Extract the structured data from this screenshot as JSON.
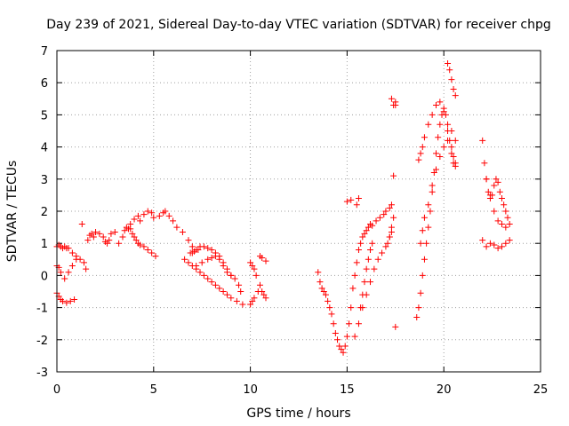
{
  "chart_data": {
    "type": "scatter",
    "title": "Day 239 of 2021, Sidereal Day-to-day VTEC variation (SDTVAR) for receiver chpg",
    "xlabel": "GPS time / hours",
    "ylabel": "SDTVAR / TECUs",
    "xlim": [
      0,
      25
    ],
    "ylim": [
      -3,
      7
    ],
    "xticks": [
      0,
      5,
      10,
      15,
      20,
      25
    ],
    "yticks": [
      -3,
      -2,
      -1,
      0,
      1,
      2,
      3,
      4,
      5,
      6,
      7
    ],
    "grid": true,
    "legend": "none",
    "marker": "plus",
    "color": "#ff0000",
    "series": [
      {
        "name": "SDTVAR",
        "x": [
          0.0,
          0.1,
          0.2,
          0.3,
          0.4,
          0.5,
          0.6,
          0.8,
          1.0,
          0.0,
          0.1,
          0.2,
          0.3,
          0.5,
          0.7,
          0.9,
          0.0,
          0.1,
          0.2,
          0.4,
          0.6,
          0.8,
          1.0,
          1.2,
          1.3,
          1.4,
          1.5,
          1.6,
          1.7,
          1.8,
          1.9,
          2.0,
          2.2,
          2.4,
          2.5,
          2.6,
          2.7,
          2.8,
          3.0,
          3.2,
          3.4,
          3.5,
          3.6,
          3.7,
          3.8,
          4.0,
          4.2,
          4.3,
          4.5,
          4.7,
          4.9,
          5.0,
          3.8,
          3.9,
          4.0,
          4.1,
          4.2,
          4.3,
          4.5,
          4.7,
          4.9,
          5.1,
          5.3,
          5.5,
          5.6,
          5.8,
          6.0,
          6.2,
          6.5,
          6.8,
          7.0,
          6.9,
          7.0,
          7.1,
          7.2,
          7.3,
          7.4,
          7.6,
          7.8,
          8.0,
          8.2,
          8.4,
          8.6,
          8.8,
          9.0,
          9.2,
          9.4,
          9.5,
          6.6,
          6.8,
          7.0,
          7.2,
          7.4,
          7.6,
          7.8,
          8.0,
          8.2,
          8.4,
          8.6,
          8.8,
          9.0,
          9.3,
          9.6,
          7.2,
          7.5,
          7.8,
          8.0,
          8.2,
          8.4,
          8.6,
          8.8,
          9.0,
          10.0,
          10.1,
          10.2,
          10.3,
          10.5,
          10.6,
          10.7,
          10.8,
          10.0,
          10.1,
          10.2,
          10.4,
          10.5,
          10.6,
          10.8,
          13.5,
          13.6,
          13.7,
          13.8,
          13.9,
          14.0,
          14.1,
          14.2,
          14.3,
          14.4,
          14.5,
          14.6,
          14.7,
          14.8,
          14.9,
          15.0,
          15.1,
          15.2,
          15.3,
          15.4,
          15.5,
          15.6,
          15.7,
          15.8,
          15.9,
          16.0,
          16.1,
          16.2,
          16.3,
          16.5,
          16.7,
          16.9,
          17.0,
          17.2,
          17.3,
          15.0,
          15.2,
          15.4,
          15.6,
          15.8,
          16.0,
          16.2,
          16.4,
          16.6,
          16.8,
          17.0,
          17.1,
          17.2,
          17.3,
          17.4,
          15.5,
          15.6,
          15.7,
          15.8,
          15.9,
          16.0,
          16.1,
          16.2,
          16.3,
          17.2,
          17.3,
          17.4,
          17.5,
          17.5,
          17.3,
          17.4,
          17.5,
          18.6,
          18.7,
          18.8,
          18.9,
          19.0,
          19.1,
          19.2,
          19.3,
          19.4,
          19.5,
          19.6,
          19.7,
          19.8,
          19.9,
          20.0,
          20.1,
          20.2,
          20.3,
          20.4,
          20.5,
          20.6,
          18.7,
          18.8,
          18.9,
          19.0,
          19.2,
          19.4,
          19.6,
          19.8,
          20.0,
          20.2,
          20.4,
          20.5,
          20.6,
          18.8,
          18.9,
          19.0,
          19.2,
          19.4,
          19.6,
          19.8,
          20.0,
          20.2,
          20.4,
          20.6,
          20.2,
          20.3,
          20.4,
          20.5,
          20.6,
          22.0,
          22.1,
          22.2,
          22.3,
          22.4,
          22.5,
          22.6,
          22.7,
          22.8,
          22.9,
          23.0,
          23.1,
          23.2,
          23.3,
          22.0,
          22.2,
          22.4,
          22.6,
          22.8,
          23.0,
          23.2,
          23.4,
          22.2,
          22.4,
          22.6,
          22.8,
          23.0,
          23.2,
          23.4
        ],
        "y": [
          0.9,
          0.95,
          0.9,
          0.85,
          0.9,
          0.85,
          0.85,
          0.7,
          0.6,
          -0.55,
          -0.65,
          -0.75,
          -0.8,
          -0.85,
          -0.8,
          -0.75,
          0.3,
          0.25,
          0.1,
          -0.1,
          0.1,
          0.3,
          0.5,
          0.5,
          1.6,
          0.4,
          0.2,
          1.1,
          1.25,
          1.3,
          1.2,
          1.35,
          1.3,
          1.2,
          1.05,
          1.0,
          1.1,
          1.3,
          1.35,
          1.0,
          1.2,
          1.4,
          1.5,
          1.45,
          1.6,
          1.75,
          1.85,
          1.7,
          1.9,
          2.0,
          1.95,
          1.8,
          1.45,
          1.3,
          1.2,
          1.1,
          1.0,
          0.95,
          0.9,
          0.8,
          0.7,
          0.6,
          1.85,
          1.95,
          2.0,
          1.85,
          1.7,
          1.5,
          1.35,
          1.1,
          0.9,
          0.7,
          0.7,
          0.75,
          0.8,
          0.8,
          0.9,
          0.9,
          0.85,
          0.8,
          0.7,
          0.6,
          0.4,
          0.2,
          0.0,
          -0.1,
          -0.3,
          -0.5,
          0.5,
          0.4,
          0.3,
          0.2,
          0.1,
          0.0,
          -0.1,
          -0.2,
          -0.3,
          -0.4,
          -0.5,
          -0.6,
          -0.7,
          -0.8,
          -0.9,
          0.3,
          0.4,
          0.5,
          0.55,
          0.6,
          0.5,
          0.3,
          0.1,
          0.0,
          0.4,
          0.3,
          0.2,
          0.0,
          -0.3,
          -0.5,
          -0.6,
          -0.7,
          -0.9,
          -0.8,
          -0.7,
          -0.5,
          0.6,
          0.55,
          0.45,
          0.1,
          -0.2,
          -0.4,
          -0.5,
          -0.6,
          -0.8,
          -1.0,
          -1.2,
          -1.5,
          -1.8,
          -2.0,
          -2.2,
          -2.3,
          -2.4,
          -2.2,
          -1.9,
          -1.5,
          -1.0,
          -0.4,
          0.0,
          0.4,
          0.8,
          1.0,
          1.2,
          1.3,
          1.4,
          1.5,
          1.6,
          1.55,
          1.7,
          1.8,
          1.9,
          2.0,
          2.1,
          2.2,
          2.3,
          2.35,
          -1.9,
          -1.5,
          -1.0,
          -0.6,
          -0.2,
          0.2,
          0.5,
          0.7,
          0.9,
          1.0,
          1.2,
          1.5,
          1.8,
          2.2,
          2.4,
          -1.0,
          -0.6,
          -0.2,
          0.2,
          0.5,
          0.8,
          1.0,
          1.2,
          1.35,
          3.1,
          5.3,
          5.4,
          5.5,
          5.3,
          -1.6,
          -1.3,
          -1.0,
          -0.55,
          0.0,
          0.5,
          1.0,
          1.5,
          2.0,
          2.6,
          3.2,
          3.8,
          4.3,
          4.7,
          5.0,
          5.2,
          5.0,
          4.7,
          4.2,
          3.8,
          3.5,
          3.4,
          3.6,
          3.8,
          4.0,
          4.3,
          4.7,
          5.0,
          5.3,
          5.4,
          5.1,
          4.5,
          4.0,
          3.7,
          3.5,
          1.0,
          1.4,
          1.8,
          2.2,
          2.8,
          3.3,
          3.7,
          4.0,
          4.2,
          4.5,
          4.2,
          6.6,
          6.4,
          6.1,
          5.8,
          5.6,
          4.2,
          3.5,
          3.0,
          2.6,
          2.4,
          2.5,
          2.8,
          3.0,
          2.9,
          2.6,
          2.4,
          2.2,
          2.0,
          1.8,
          1.1,
          0.9,
          1.0,
          0.95,
          0.85,
          0.9,
          1.0,
          1.1,
          3.0,
          2.5,
          2.0,
          1.7,
          1.6,
          1.5,
          1.6
        ]
      }
    ]
  }
}
